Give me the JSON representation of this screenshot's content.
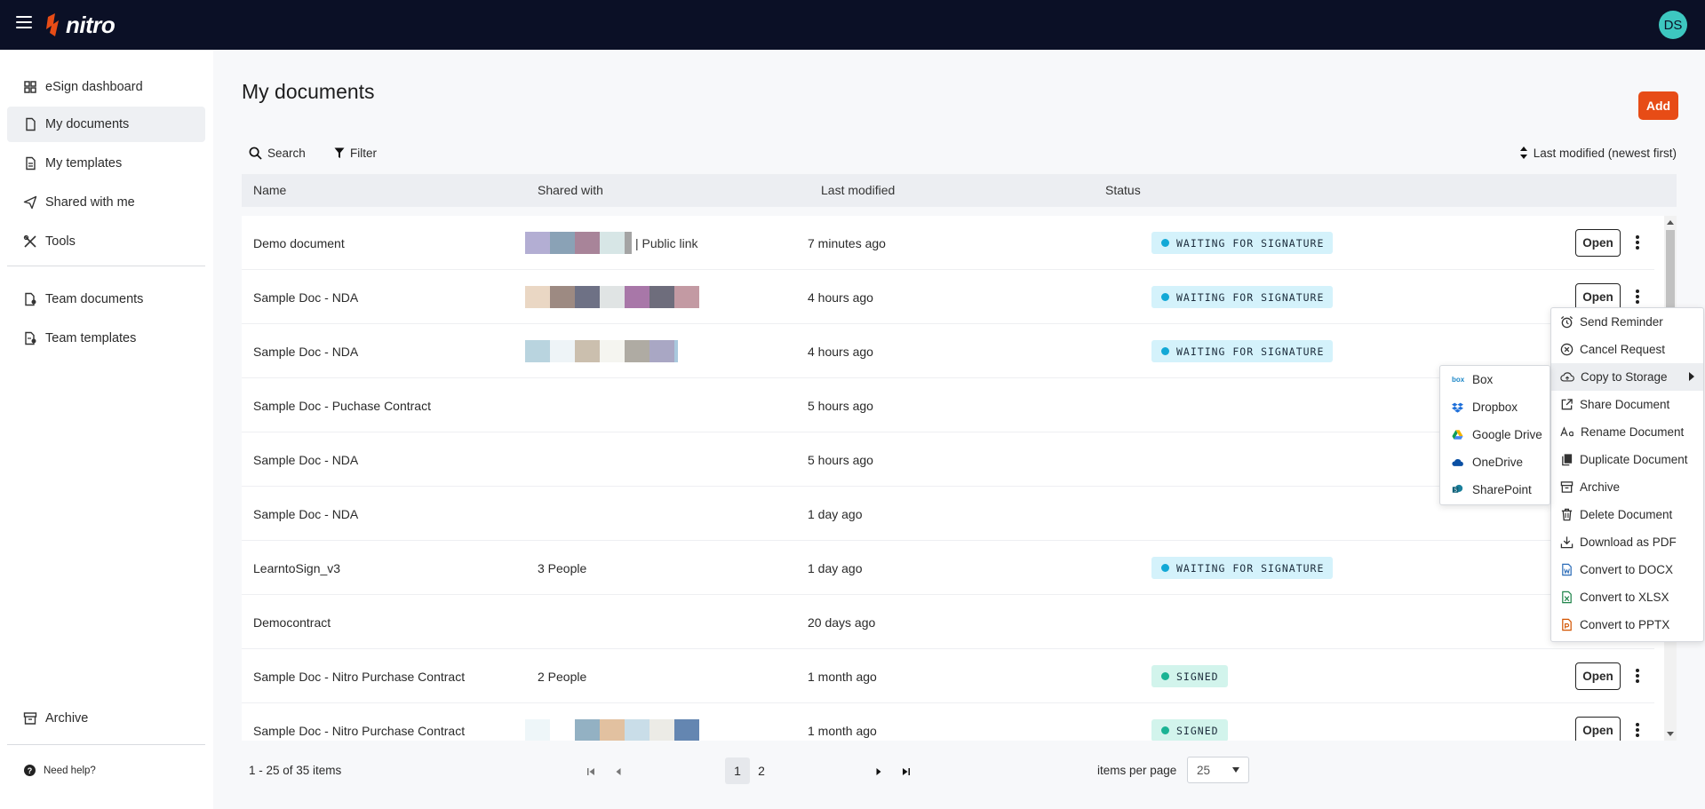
{
  "app": {
    "logo_text": "nitro",
    "user_initials": "DS"
  },
  "colors": {
    "accent": "#e74c16",
    "topbar": "#0b1026",
    "avatar": "#3dc7c0",
    "waiting": "#12a8d6",
    "signed": "#1ab394"
  },
  "sidebar": {
    "items": [
      {
        "label": "eSign dashboard",
        "icon": "grid-icon"
      },
      {
        "label": "My documents",
        "icon": "document-icon"
      },
      {
        "label": "My templates",
        "icon": "template-icon"
      },
      {
        "label": "Shared with me",
        "icon": "send-icon"
      },
      {
        "label": "Tools",
        "icon": "tools-icon"
      },
      {
        "label": "Team documents",
        "icon": "team-document-icon"
      },
      {
        "label": "Team templates",
        "icon": "team-template-icon"
      },
      {
        "label": "Archive",
        "icon": "archive-icon"
      }
    ],
    "help_label": "Need help?"
  },
  "main": {
    "title": "My documents",
    "add_label": "Add",
    "search_label": "Search",
    "filter_label": "Filter",
    "sort_label": "Last modified (newest first)"
  },
  "table": {
    "headers": [
      "Name",
      "Shared with",
      "Last modified",
      "Status"
    ],
    "rows": [
      {
        "name": "Demo document",
        "shared": "| Public link",
        "modified": "7 minutes ago",
        "status": "WAITING FOR SIGNATURE",
        "open": "Open"
      },
      {
        "name": "Sample Doc - NDA",
        "shared": "",
        "modified": "4 hours ago",
        "status": "WAITING FOR SIGNATURE",
        "open": "Open"
      },
      {
        "name": "Sample Doc - NDA",
        "shared": "",
        "modified": "4 hours ago",
        "status": "WAITING FOR SIGNATURE",
        "open": ""
      },
      {
        "name": "Sample Doc - Puchase Contract",
        "shared": "",
        "modified": "5 hours ago",
        "status": "",
        "open": ""
      },
      {
        "name": "Sample Doc - NDA",
        "shared": "",
        "modified": "5 hours ago",
        "status": "",
        "open": ""
      },
      {
        "name": "Sample Doc - NDA",
        "shared": "",
        "modified": "1 day ago",
        "status": "",
        "open": ""
      },
      {
        "name": "LearntoSign_v3",
        "shared": "3 People",
        "modified": "1 day ago",
        "status": "WAITING FOR SIGNATURE",
        "open": ""
      },
      {
        "name": "Democontract",
        "shared": "",
        "modified": "20 days ago",
        "status": "",
        "open": ""
      },
      {
        "name": "Sample Doc - Nitro Purchase Contract",
        "shared": "2 People",
        "modified": "1 month ago",
        "status": "SIGNED",
        "open": "Open"
      },
      {
        "name": "Sample Doc - Nitro Purchase Contract",
        "shared": "",
        "modified": "1 month ago",
        "status": "SIGNED",
        "open": "Open"
      }
    ]
  },
  "pager": {
    "info": "1 - 25 of 35 items",
    "pages": [
      "1",
      "2"
    ],
    "items_per_page_label": "items per page",
    "items_per_page_value": "25"
  },
  "context_menu": {
    "items": [
      {
        "label": "Send Reminder",
        "icon": "alarm-clock-icon"
      },
      {
        "label": "Cancel Request",
        "icon": "cancel-circle-icon"
      },
      {
        "label": "Copy to Storage",
        "icon": "cloud-upload-icon"
      },
      {
        "label": "Share Document",
        "icon": "share-icon"
      },
      {
        "label": "Rename Document",
        "icon": "rename-icon"
      },
      {
        "label": "Duplicate Document",
        "icon": "duplicate-icon"
      },
      {
        "label": "Archive",
        "icon": "archive-icon"
      },
      {
        "label": "Delete Document",
        "icon": "trash-icon"
      },
      {
        "label": "Download as PDF",
        "icon": "download-icon"
      },
      {
        "label": "Convert to DOCX",
        "icon": "word-icon"
      },
      {
        "label": "Convert to XLSX",
        "icon": "excel-icon"
      },
      {
        "label": "Convert to PPTX",
        "icon": "powerpoint-icon"
      }
    ]
  },
  "storage_menu": {
    "items": [
      {
        "label": "Box",
        "icon": "box-icon"
      },
      {
        "label": "Dropbox",
        "icon": "dropbox-icon"
      },
      {
        "label": "Google Drive",
        "icon": "google-drive-icon"
      },
      {
        "label": "OneDrive",
        "icon": "onedrive-icon"
      },
      {
        "label": "SharePoint",
        "icon": "sharepoint-icon"
      }
    ]
  }
}
